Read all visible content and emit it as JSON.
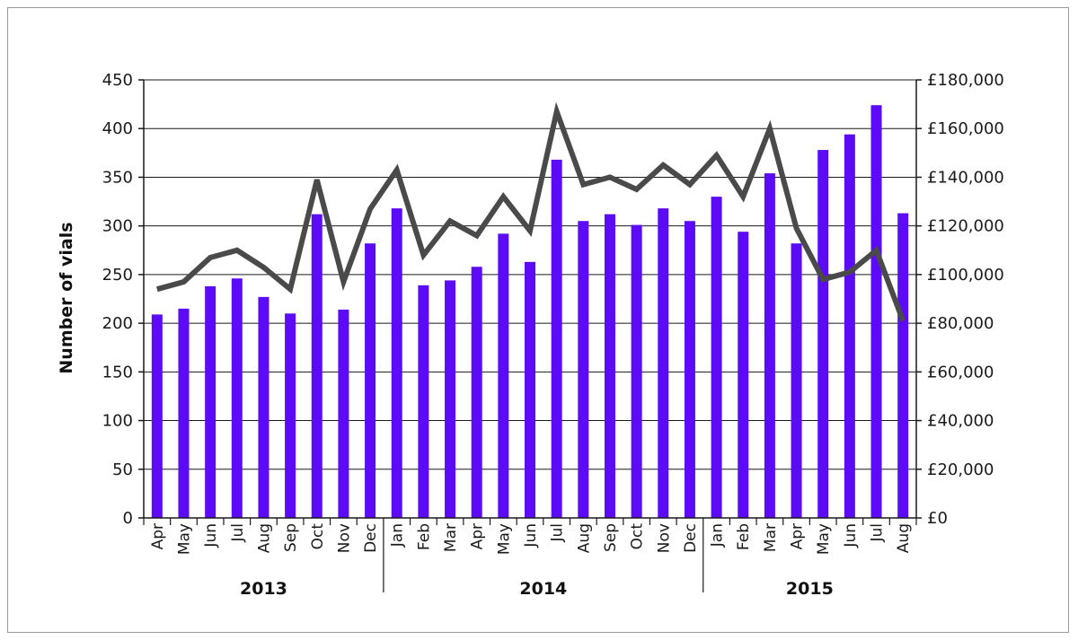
{
  "chart_data": {
    "type": "bar",
    "title": "",
    "xlabel": "",
    "ylabel": "Number of vials",
    "ylim": [
      0,
      450
    ],
    "y_ticks": [
      0,
      50,
      100,
      150,
      200,
      250,
      300,
      350,
      400,
      450
    ],
    "y2lim": [
      0,
      180000
    ],
    "y2_ticks": [
      "£0",
      "£20,000",
      "£40,000",
      "£60,000",
      "£80,000",
      "£100,000",
      "£120,000",
      "£140,000",
      "£160,000",
      "£180,000"
    ],
    "categories": [
      "Apr",
      "May",
      "Jun",
      "Jul",
      "Aug",
      "Sep",
      "Oct",
      "Nov",
      "Dec",
      "Jan",
      "Feb",
      "Mar",
      "Apr",
      "May",
      "Jun",
      "Jul",
      "Aug",
      "Sep",
      "Oct",
      "Nov",
      "Dec",
      "Jan",
      "Feb",
      "Mar",
      "Apr",
      "May",
      "Jun",
      "Jul",
      "Aug"
    ],
    "year_groups": [
      {
        "label": "2013",
        "start": 0,
        "end": 8
      },
      {
        "label": "2014",
        "start": 9,
        "end": 20
      },
      {
        "label": "2015",
        "start": 21,
        "end": 28
      }
    ],
    "grid": true,
    "series": [
      {
        "type": "bar",
        "axis": "left",
        "color": "#5b0bf5",
        "values": [
          209,
          215,
          238,
          246,
          227,
          210,
          312,
          214,
          282,
          318,
          239,
          244,
          258,
          292,
          263,
          368,
          305,
          312,
          301,
          318,
          305,
          330,
          294,
          354,
          282,
          378,
          394,
          424,
          313
        ]
      },
      {
        "type": "line",
        "axis": "right",
        "color": "#4a4a4a",
        "values": [
          94000,
          97000,
          107000,
          110000,
          103000,
          94000,
          139000,
          97000,
          127000,
          143000,
          108000,
          122000,
          116000,
          132000,
          118000,
          167000,
          137000,
          140000,
          135000,
          145000,
          137000,
          149000,
          132000,
          160000,
          119000,
          98000,
          101000,
          110000,
          81000
        ]
      }
    ]
  }
}
